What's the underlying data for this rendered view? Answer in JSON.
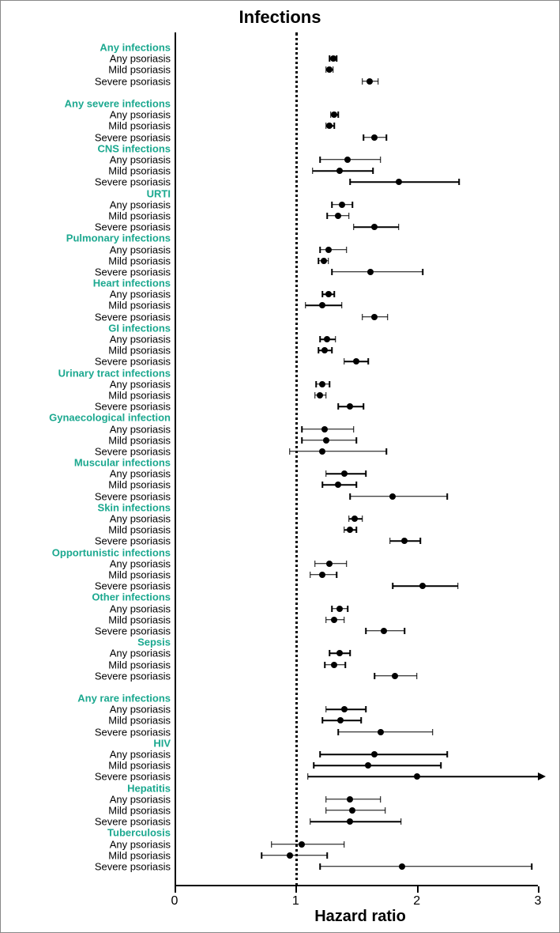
{
  "title": "Infections",
  "xlabel": "Hazard ratio",
  "xlim": [
    0,
    3
  ],
  "xticks": [
    0,
    1,
    2,
    3
  ],
  "ref_x": 1,
  "colors": {
    "header": "#1ba88f",
    "item": "#000000",
    "point": "#000000",
    "line": "#000000",
    "background": "#ffffff"
  },
  "font": {
    "title_size": 22,
    "label_size": 13,
    "xlabel_size": 20,
    "tick_size": 16
  },
  "point_radius": 4,
  "cap_height": 8,
  "rows": [
    {
      "type": "header",
      "label": "Any infections"
    },
    {
      "type": "item",
      "label": "Any psoriasis",
      "hr": 1.31,
      "lo": 1.28,
      "hi": 1.34
    },
    {
      "type": "item",
      "label": "Mild psoriasis",
      "hr": 1.28,
      "lo": 1.25,
      "hi": 1.31
    },
    {
      "type": "item",
      "label": "Severe psoriasis",
      "hr": 1.61,
      "lo": 1.55,
      "hi": 1.68
    },
    {
      "type": "gap"
    },
    {
      "type": "header",
      "label": "Any severe infections"
    },
    {
      "type": "item",
      "label": "Any psoriasis",
      "hr": 1.32,
      "lo": 1.29,
      "hi": 1.35
    },
    {
      "type": "item",
      "label": "Mild psoriasis",
      "hr": 1.28,
      "lo": 1.25,
      "hi": 1.32
    },
    {
      "type": "item",
      "label": "Severe psoriasis",
      "hr": 1.65,
      "lo": 1.56,
      "hi": 1.75
    },
    {
      "type": "header",
      "label": "CNS infections"
    },
    {
      "type": "item",
      "label": "Any psoriasis",
      "hr": 1.43,
      "lo": 1.2,
      "hi": 1.7
    },
    {
      "type": "item",
      "label": "Mild psoriasis",
      "hr": 1.36,
      "lo": 1.14,
      "hi": 1.64
    },
    {
      "type": "item",
      "label": "Severe psoriasis",
      "hr": 1.85,
      "lo": 1.45,
      "hi": 2.35
    },
    {
      "type": "header",
      "label": "URTI"
    },
    {
      "type": "item",
      "label": "Any psoriasis",
      "hr": 1.38,
      "lo": 1.3,
      "hi": 1.47
    },
    {
      "type": "item",
      "label": "Mild psoriasis",
      "hr": 1.35,
      "lo": 1.26,
      "hi": 1.44
    },
    {
      "type": "item",
      "label": "Severe psoriasis",
      "hr": 1.65,
      "lo": 1.48,
      "hi": 1.85
    },
    {
      "type": "header",
      "label": "Pulmonary infections"
    },
    {
      "type": "item",
      "label": "Any psoriasis",
      "hr": 1.27,
      "lo": 1.2,
      "hi": 1.42
    },
    {
      "type": "item",
      "label": "Mild psoriasis",
      "hr": 1.23,
      "lo": 1.19,
      "hi": 1.27
    },
    {
      "type": "item",
      "label": "Severe psoriasis",
      "hr": 1.62,
      "lo": 1.3,
      "hi": 2.05
    },
    {
      "type": "header",
      "label": "Heart infections"
    },
    {
      "type": "item",
      "label": "Any psoriasis",
      "hr": 1.27,
      "lo": 1.22,
      "hi": 1.32
    },
    {
      "type": "item",
      "label": "Mild psoriasis",
      "hr": 1.22,
      "lo": 1.08,
      "hi": 1.38
    },
    {
      "type": "item",
      "label": "Severe psoriasis",
      "hr": 1.65,
      "lo": 1.55,
      "hi": 1.76
    },
    {
      "type": "header",
      "label": "GI infections"
    },
    {
      "type": "item",
      "label": "Any psoriasis",
      "hr": 1.26,
      "lo": 1.2,
      "hi": 1.33
    },
    {
      "type": "item",
      "label": "Mild psoriasis",
      "hr": 1.24,
      "lo": 1.19,
      "hi": 1.3
    },
    {
      "type": "item",
      "label": "Severe psoriasis",
      "hr": 1.5,
      "lo": 1.4,
      "hi": 1.6
    },
    {
      "type": "header",
      "label": "Urinary tract infections"
    },
    {
      "type": "item",
      "label": "Any psoriasis",
      "hr": 1.22,
      "lo": 1.17,
      "hi": 1.28
    },
    {
      "type": "item",
      "label": "Mild psoriasis",
      "hr": 1.2,
      "lo": 1.16,
      "hi": 1.25
    },
    {
      "type": "item",
      "label": "Severe psoriasis",
      "hr": 1.45,
      "lo": 1.35,
      "hi": 1.56
    },
    {
      "type": "header",
      "label": "Gynaecological infection"
    },
    {
      "type": "item",
      "label": "Any psoriasis",
      "hr": 1.24,
      "lo": 1.05,
      "hi": 1.48
    },
    {
      "type": "item",
      "label": "Mild psoriasis",
      "hr": 1.25,
      "lo": 1.05,
      "hi": 1.5
    },
    {
      "type": "item",
      "label": "Severe psoriasis",
      "hr": 1.22,
      "lo": 0.95,
      "hi": 1.75
    },
    {
      "type": "header",
      "label": "Muscular infections"
    },
    {
      "type": "item",
      "label": "Any psoriasis",
      "hr": 1.4,
      "lo": 1.25,
      "hi": 1.58
    },
    {
      "type": "item",
      "label": "Mild psoriasis",
      "hr": 1.35,
      "lo": 1.22,
      "hi": 1.5
    },
    {
      "type": "item",
      "label": "Severe psoriasis",
      "hr": 1.8,
      "lo": 1.45,
      "hi": 2.25
    },
    {
      "type": "header",
      "label": "Skin infections"
    },
    {
      "type": "item",
      "label": "Any psoriasis",
      "hr": 1.49,
      "lo": 1.44,
      "hi": 1.55
    },
    {
      "type": "item",
      "label": "Mild psoriasis",
      "hr": 1.45,
      "lo": 1.4,
      "hi": 1.5
    },
    {
      "type": "item",
      "label": "Severe psoriasis",
      "hr": 1.9,
      "lo": 1.78,
      "hi": 2.03
    },
    {
      "type": "header",
      "label": "Opportunistic infections"
    },
    {
      "type": "item",
      "label": "Any psoriasis",
      "hr": 1.28,
      "lo": 1.16,
      "hi": 1.42
    },
    {
      "type": "item",
      "label": "Mild psoriasis",
      "hr": 1.22,
      "lo": 1.12,
      "hi": 1.34
    },
    {
      "type": "item",
      "label": "Severe psoriasis",
      "hr": 2.05,
      "lo": 1.8,
      "hi": 2.34
    },
    {
      "type": "header",
      "label": "Other infections"
    },
    {
      "type": "item",
      "label": "Any psoriasis",
      "hr": 1.36,
      "lo": 1.3,
      "hi": 1.43
    },
    {
      "type": "item",
      "label": "Mild psoriasis",
      "hr": 1.32,
      "lo": 1.25,
      "hi": 1.4
    },
    {
      "type": "item",
      "label": "Severe psoriasis",
      "hr": 1.73,
      "lo": 1.58,
      "hi": 1.9
    },
    {
      "type": "header",
      "label": "Sepsis"
    },
    {
      "type": "item",
      "label": "Any psoriasis",
      "hr": 1.36,
      "lo": 1.28,
      "hi": 1.45
    },
    {
      "type": "item",
      "label": "Mild psoriasis",
      "hr": 1.32,
      "lo": 1.24,
      "hi": 1.41
    },
    {
      "type": "item",
      "label": "Severe psoriasis",
      "hr": 1.82,
      "lo": 1.65,
      "hi": 2.0
    },
    {
      "type": "gap"
    },
    {
      "type": "header",
      "label": "Any rare infections"
    },
    {
      "type": "item",
      "label": "Any psoriasis",
      "hr": 1.4,
      "lo": 1.25,
      "hi": 1.58
    },
    {
      "type": "item",
      "label": "Mild psoriasis",
      "hr": 1.37,
      "lo": 1.22,
      "hi": 1.54
    },
    {
      "type": "item",
      "label": "Severe psoriasis",
      "hr": 1.7,
      "lo": 1.35,
      "hi": 2.13
    },
    {
      "type": "header",
      "label": "HIV"
    },
    {
      "type": "item",
      "label": "Any psoriasis",
      "hr": 1.65,
      "lo": 1.2,
      "hi": 2.25
    },
    {
      "type": "item",
      "label": "Mild psoriasis",
      "hr": 1.6,
      "lo": 1.15,
      "hi": 2.2
    },
    {
      "type": "item",
      "label": "Severe psoriasis",
      "hr": 2.0,
      "lo": 1.1,
      "hi": 3.5,
      "truncated_hi": true
    },
    {
      "type": "header",
      "label": "Hepatitis"
    },
    {
      "type": "item",
      "label": "Any psoriasis",
      "hr": 1.45,
      "lo": 1.25,
      "hi": 1.7
    },
    {
      "type": "item",
      "label": "Mild psoriasis",
      "hr": 1.47,
      "lo": 1.25,
      "hi": 1.74
    },
    {
      "type": "item",
      "label": "Severe psoriasis",
      "hr": 1.45,
      "lo": 1.12,
      "hi": 1.87
    },
    {
      "type": "header",
      "label": "Tuberculosis"
    },
    {
      "type": "item",
      "label": "Any psoriasis",
      "hr": 1.05,
      "lo": 0.8,
      "hi": 1.4
    },
    {
      "type": "item",
      "label": "Mild psoriasis",
      "hr": 0.95,
      "lo": 0.72,
      "hi": 1.26
    },
    {
      "type": "item",
      "label": "Severe psoriasis",
      "hr": 1.88,
      "lo": 1.2,
      "hi": 2.95
    }
  ]
}
